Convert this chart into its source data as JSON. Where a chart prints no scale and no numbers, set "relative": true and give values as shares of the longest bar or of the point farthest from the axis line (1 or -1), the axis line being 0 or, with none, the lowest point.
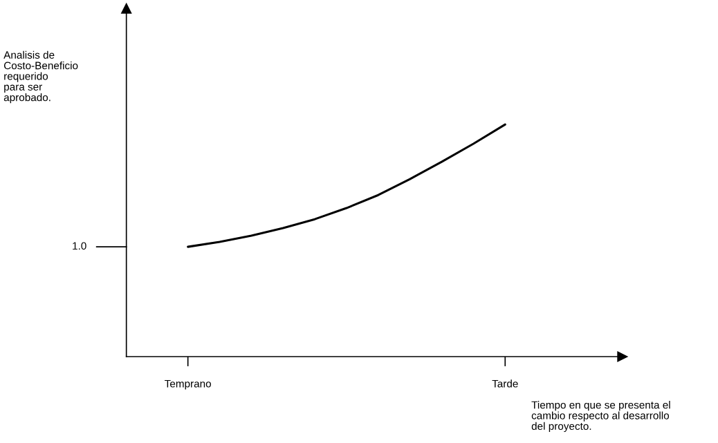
{
  "chart_data": {
    "type": "line",
    "relative": true,
    "xlabel": "Tiempo en que se presenta el\ncambio respecto al desarrollo\ndel proyecto.",
    "categories": [
      "Temprano",
      null,
      null,
      null,
      null,
      null,
      null,
      null,
      null,
      null,
      "Tarde"
    ],
    "series": [
      {
        "color": "#000000",
        "values": [
          0.473,
          0.494,
          0.521,
          0.554,
          0.592,
          0.64,
          0.696,
          0.765,
          0.839,
          0.917,
          1.0
        ]
      }
    ],
    "annotations": [
      "1.0",
      "Analisis de\nCosto-Beneficio\nrequerido\npara ser\naprobado."
    ],
    "grid": false,
    "legend": false,
    "marker": "none",
    "line_style": "solid"
  }
}
